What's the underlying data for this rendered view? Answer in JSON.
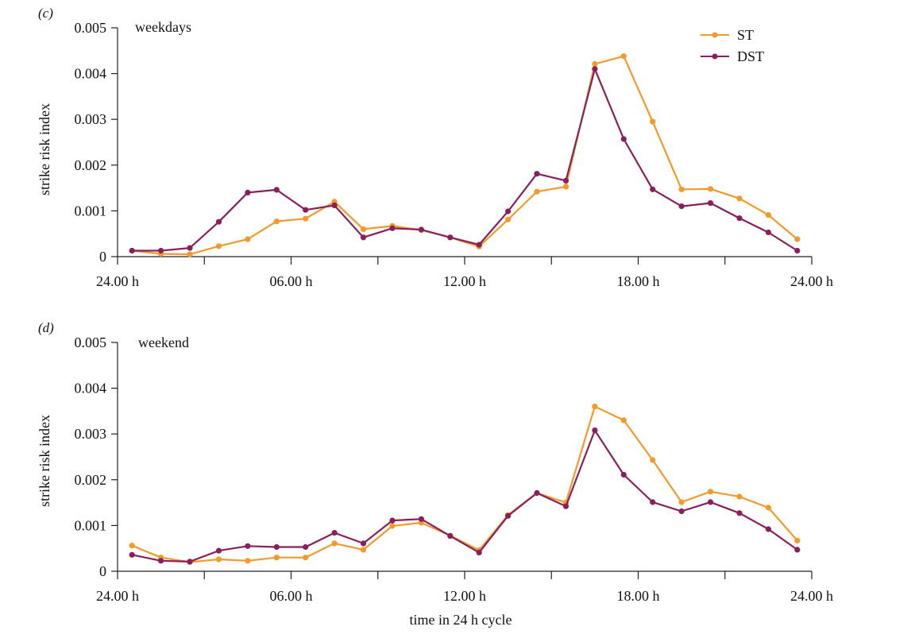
{
  "colors": {
    "ST": "#F39A2B",
    "DST": "#8B1F5B",
    "axis": "#222222"
  },
  "xlabel_shared": "time in 24 h cycle",
  "chart_data": [
    {
      "type": "line",
      "panel_label": "(c)",
      "title": "weekdays",
      "xlabel": "",
      "ylabel": "strike risk index",
      "ylim": [
        0,
        0.005
      ],
      "y_ticks": [
        "0",
        "0.001",
        "0.002",
        "0.003",
        "0.004",
        "0.005"
      ],
      "x_tick_labels": [
        "24.00 h",
        "06.00 h",
        "12.00 h",
        "18.00 h",
        "24.00 h"
      ],
      "x_range_hours": [
        0,
        24
      ],
      "x_hours": [
        0.5,
        1.5,
        2.5,
        3.5,
        4.5,
        5.5,
        6.5,
        7.5,
        8.5,
        9.5,
        10.5,
        11.5,
        12.5,
        13.5,
        14.5,
        15.5,
        16.5,
        17.5,
        18.5,
        19.5,
        20.5,
        21.5,
        22.5,
        23.5
      ],
      "legend": "top-right",
      "series": [
        {
          "name": "ST",
          "color": "#F39A2B",
          "values": [
            0.00013,
            6e-05,
            5e-05,
            0.00023,
            0.00038,
            0.00077,
            0.00083,
            0.0012,
            0.0006,
            0.00067,
            0.00058,
            0.00042,
            0.00022,
            0.00081,
            0.00142,
            0.00153,
            0.00421,
            0.00438,
            0.00295,
            0.00147,
            0.00148,
            0.00127,
            0.00091,
            0.00038
          ]
        },
        {
          "name": "DST",
          "color": "#8B1F5B",
          "values": [
            0.00013,
            0.00013,
            0.00019,
            0.00076,
            0.0014,
            0.00146,
            0.00102,
            0.00112,
            0.00042,
            0.00062,
            0.00059,
            0.00042,
            0.00026,
            0.00099,
            0.00181,
            0.00166,
            0.0041,
            0.00257,
            0.00147,
            0.0011,
            0.00117,
            0.00084,
            0.00053,
            0.00013
          ]
        }
      ]
    },
    {
      "type": "line",
      "panel_label": "(d)",
      "title": "weekend",
      "xlabel": "time in 24 h cycle",
      "ylabel": "strike risk index",
      "ylim": [
        0,
        0.005
      ],
      "y_ticks": [
        "0",
        "0.001",
        "0.002",
        "0.003",
        "0.004",
        "0.005"
      ],
      "x_tick_labels": [
        "24.00 h",
        "06.00 h",
        "12.00 h",
        "18.00 h",
        "24.00 h"
      ],
      "x_range_hours": [
        0,
        24
      ],
      "x_hours": [
        0.5,
        1.5,
        2.5,
        3.5,
        4.5,
        5.5,
        6.5,
        7.5,
        8.5,
        9.5,
        10.5,
        11.5,
        12.5,
        13.5,
        14.5,
        15.5,
        16.5,
        17.5,
        18.5,
        19.5,
        20.5,
        21.5,
        22.5,
        23.5
      ],
      "series": [
        {
          "name": "ST",
          "color": "#F39A2B",
          "values": [
            0.00056,
            0.0003,
            0.0002,
            0.00026,
            0.00023,
            0.0003,
            0.0003,
            0.00061,
            0.00047,
            0.00099,
            0.00106,
            0.00078,
            0.00046,
            0.00123,
            0.00171,
            0.0015,
            0.0036,
            0.0033,
            0.00243,
            0.00151,
            0.00174,
            0.00163,
            0.00139,
            0.00067
          ]
        },
        {
          "name": "DST",
          "color": "#8B1F5B",
          "values": [
            0.00036,
            0.00023,
            0.00021,
            0.00045,
            0.00055,
            0.00053,
            0.00053,
            0.00084,
            0.00061,
            0.00111,
            0.00114,
            0.00077,
            0.00041,
            0.00121,
            0.00171,
            0.00142,
            0.00308,
            0.00211,
            0.00151,
            0.00131,
            0.00151,
            0.00127,
            0.00092,
            0.00047
          ]
        }
      ]
    }
  ]
}
